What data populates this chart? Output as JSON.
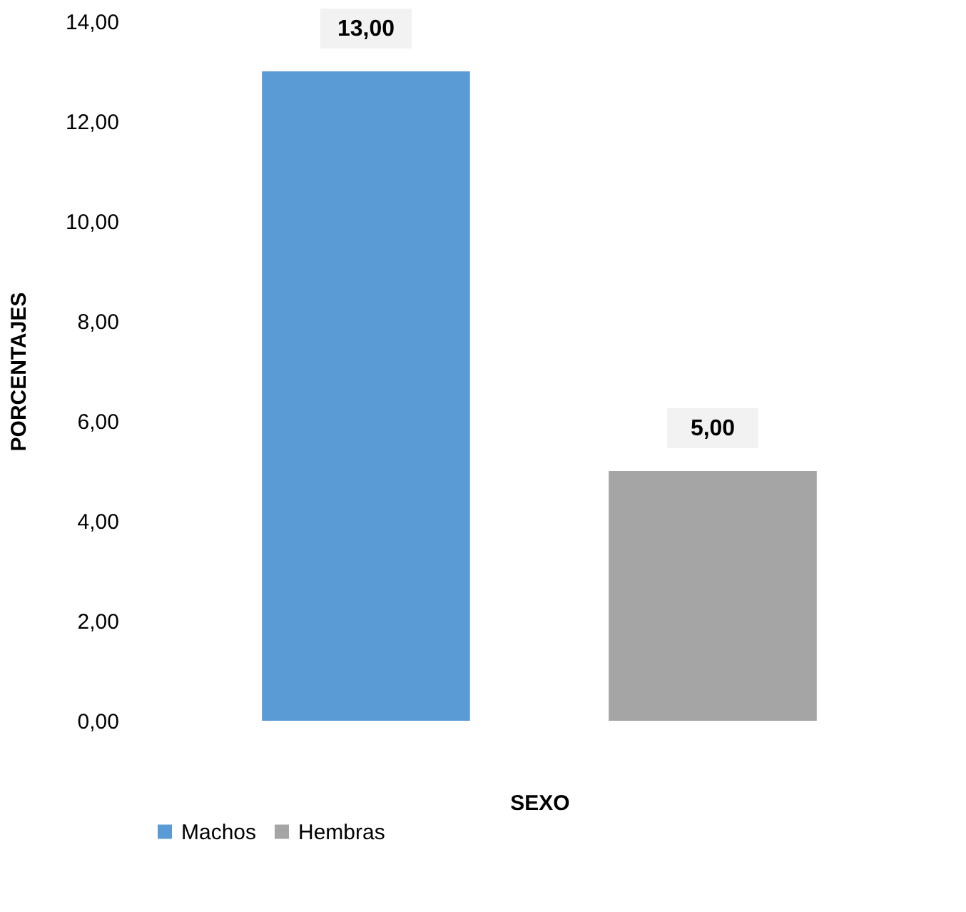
{
  "chart_data": {
    "type": "bar",
    "categories": [
      null
    ],
    "series": [
      {
        "name": "Machos",
        "color": "#5b9bd5",
        "values": [
          13.0
        ],
        "value_labels": [
          "13,00"
        ]
      },
      {
        "name": "Hembras",
        "color": "#a5a5a5",
        "values": [
          5.0
        ],
        "value_labels": [
          "5,00"
        ]
      }
    ],
    "xlabel": "SEXO",
    "ylabel": "PORCENTAJES",
    "ylim": [
      0,
      14
    ],
    "yticks": [
      {
        "value": 0,
        "label": "0,00"
      },
      {
        "value": 2,
        "label": "2,00"
      },
      {
        "value": 4,
        "label": "4,00"
      },
      {
        "value": 6,
        "label": "6,00"
      },
      {
        "value": 8,
        "label": "8,00"
      },
      {
        "value": 10,
        "label": "10,00"
      },
      {
        "value": 12,
        "label": "12,00"
      },
      {
        "value": 14,
        "label": "14,00"
      }
    ],
    "grid": false,
    "legend": "bottom",
    "tick_labels": "y"
  }
}
